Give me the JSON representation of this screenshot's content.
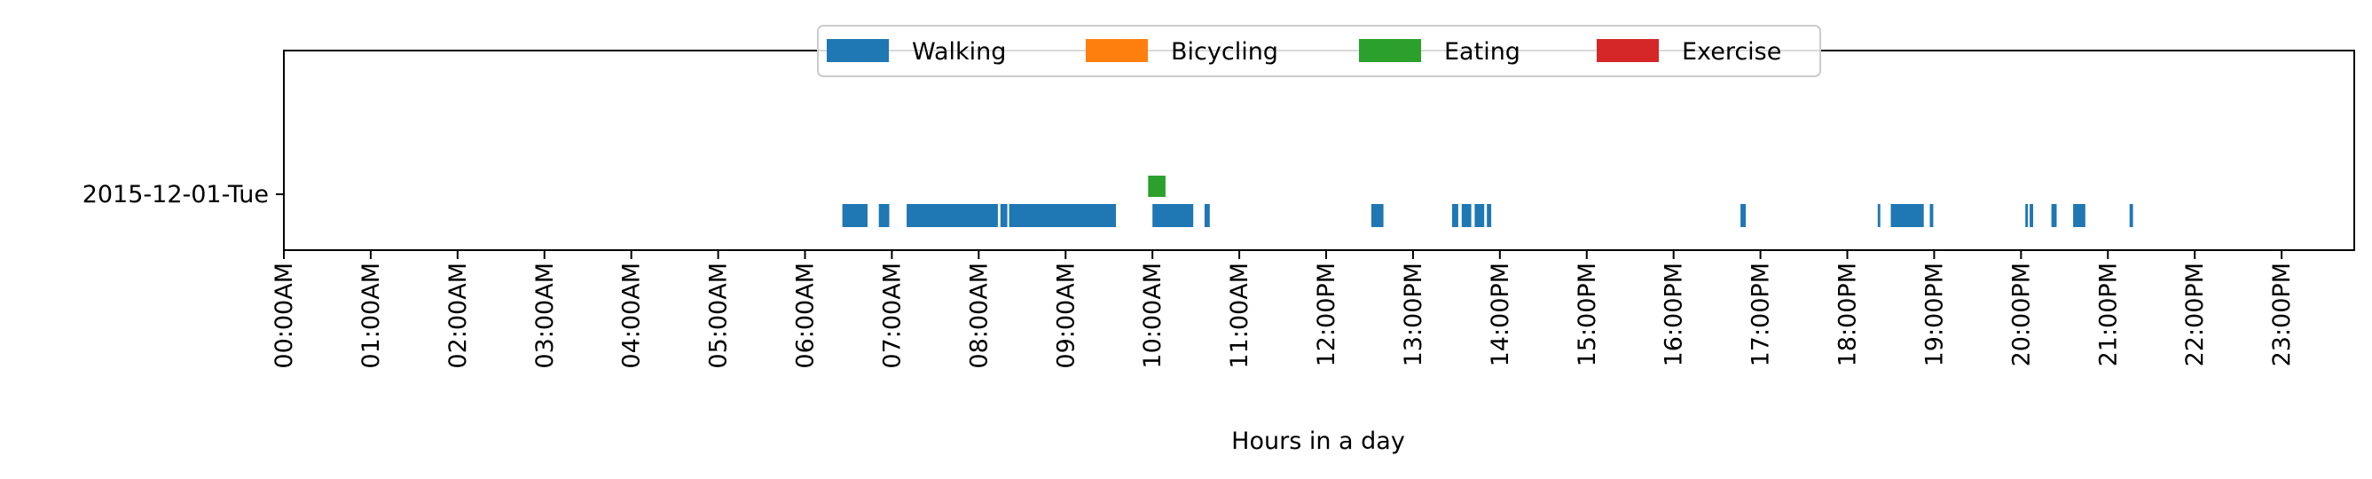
{
  "chart_data": {
    "type": "broken_barh",
    "title": "",
    "xlabel": "Hours in a day",
    "ylabel": "",
    "xlim": [
      0,
      24
    ],
    "x_unit": "hours",
    "grid": false,
    "legend_position": "top-center",
    "category": "2015-12-01-Tue",
    "tick_labels": [
      "00:00AM",
      "01:00AM",
      "02:00AM",
      "03:00AM",
      "04:00AM",
      "05:00AM",
      "06:00AM",
      "07:00AM",
      "08:00AM",
      "09:00AM",
      "10:00AM",
      "11:00AM",
      "12:00PM",
      "13:00PM",
      "14:00PM",
      "15:00PM",
      "16:00PM",
      "17:00PM",
      "18:00PM",
      "19:00PM",
      "20:00PM",
      "21:00PM",
      "22:00PM",
      "23:00PM"
    ],
    "series": [
      {
        "name": "Walking",
        "color": "#1f77b4",
        "segments": [
          [
            6.43,
            6.72
          ],
          [
            6.85,
            6.97
          ],
          [
            7.17,
            8.22
          ],
          [
            8.25,
            8.33
          ],
          [
            8.35,
            9.58
          ],
          [
            10.0,
            10.47
          ],
          [
            10.6,
            10.66
          ],
          [
            12.52,
            12.66
          ],
          [
            13.45,
            13.52
          ],
          [
            13.56,
            13.67
          ],
          [
            13.71,
            13.82
          ],
          [
            13.85,
            13.9
          ],
          [
            16.77,
            16.83
          ],
          [
            18.35,
            18.38
          ],
          [
            18.5,
            18.88
          ],
          [
            18.95,
            18.99
          ],
          [
            20.05,
            20.08
          ],
          [
            20.1,
            20.14
          ],
          [
            20.35,
            20.41
          ],
          [
            20.6,
            20.74
          ],
          [
            21.25,
            21.29
          ]
        ]
      },
      {
        "name": "Bicycling",
        "color": "#ff7f0e",
        "segments": []
      },
      {
        "name": "Eating",
        "color": "#2ca02c",
        "segments": [
          [
            9.95,
            10.15
          ]
        ]
      },
      {
        "name": "Exercise",
        "color": "#d62728",
        "segments": []
      }
    ]
  }
}
